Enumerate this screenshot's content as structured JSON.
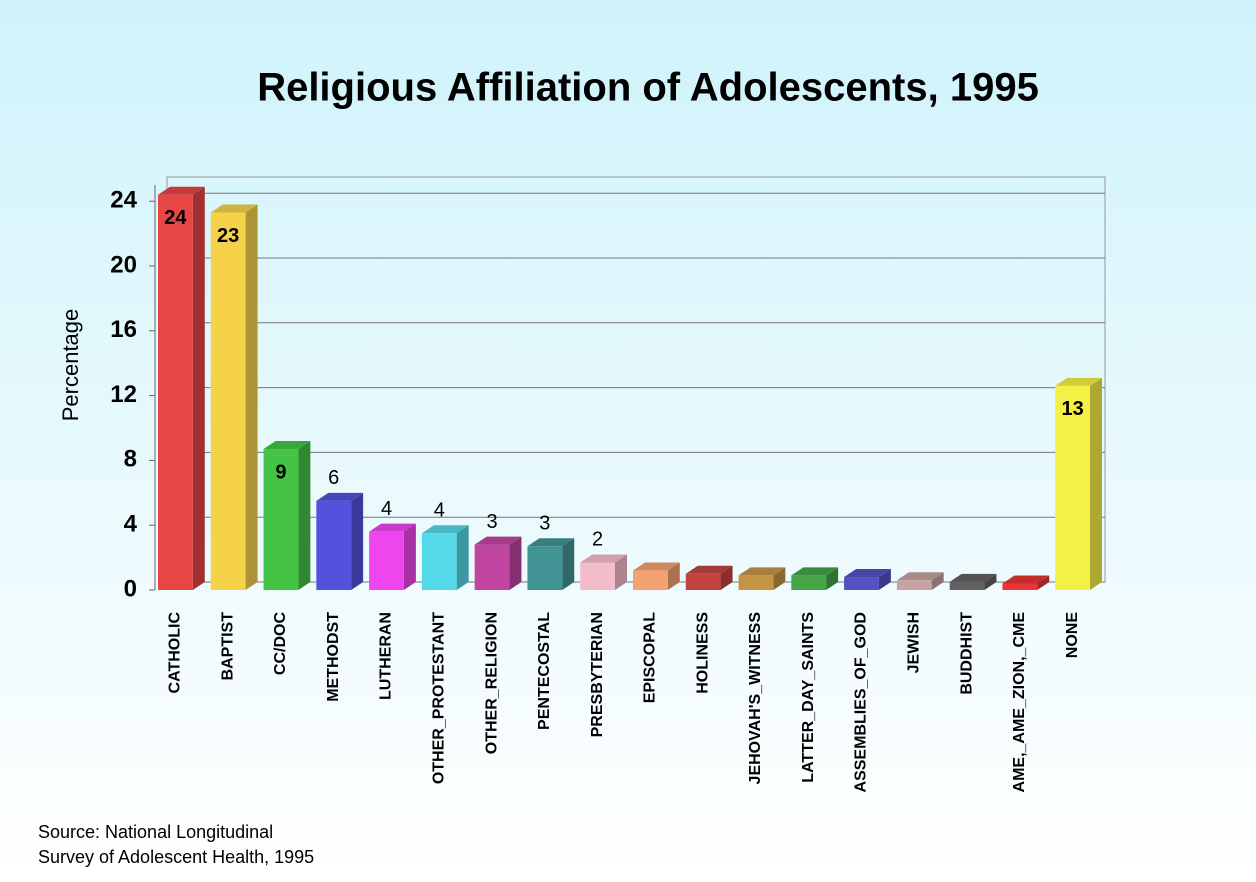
{
  "chart_data": {
    "type": "bar",
    "title": "Religious Affiliation of Adolescents, 1995",
    "y_label": "Percentage",
    "source": [
      "Source: National Longitudinal",
      "Survey of Adolescent Health, 1995"
    ],
    "categories": [
      "CATHOLIC",
      "BAPTIST",
      "CC/DOC",
      "METHODST",
      "LUTHERAN",
      "OTHER_PROTESTANT",
      "OTHER_RELIGION",
      "PENTECOSTAL",
      "PRESBYTERIAN",
      "EPISCOPAL",
      "HOLINESS",
      "JEHOVAH'S_WITNESS",
      "LATTER_DAY_SAINTS",
      "ASSEMBLIES_OF_GOD",
      "JEWISH",
      "BUDDHIST",
      "AME,_AME_ZION,_CME",
      "NONE"
    ],
    "values": [
      24.4,
      23.3,
      8.7,
      5.5,
      3.6,
      3.5,
      2.8,
      2.7,
      1.7,
      1.2,
      1.0,
      0.9,
      0.9,
      0.8,
      0.6,
      0.5,
      0.4,
      12.6
    ],
    "value_labels": [
      "24",
      "23",
      "9",
      "6",
      "4",
      "4",
      "3",
      "3",
      "2",
      null,
      null,
      null,
      null,
      null,
      null,
      null,
      null,
      "13"
    ],
    "colors": [
      "#e84545",
      "#f5d24a",
      "#45c345",
      "#5252dd",
      "#ee45ee",
      "#55d8e8",
      "#c045a0",
      "#429494",
      "#f4bccb",
      "#f4a272",
      "#c24242",
      "#c49445",
      "#45a445",
      "#5252c2",
      "#c6a2a2",
      "#626262",
      "#e83535",
      "#f5f045"
    ],
    "ylim": [
      0,
      25
    ],
    "yticks": [
      0,
      4,
      8,
      12,
      16,
      20,
      24
    ],
    "grid": true
  }
}
